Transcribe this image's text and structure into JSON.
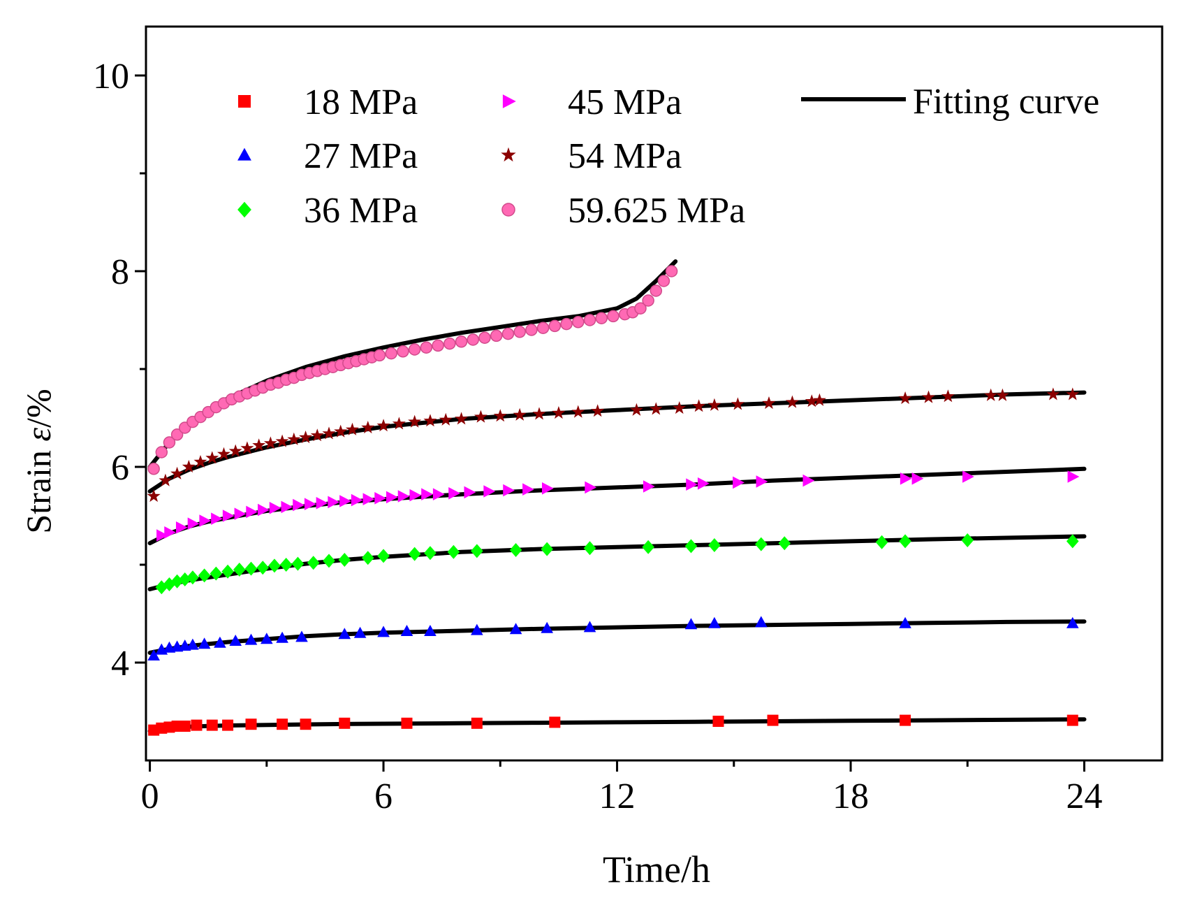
{
  "chart_data": {
    "type": "scatter",
    "title": "",
    "xlabel": "Time/h",
    "ylabel_prefix": "Strain ",
    "ylabel_symbol": "ε",
    "ylabel_suffix": "/%",
    "xlim": [
      -0.1,
      26
    ],
    "ylim": [
      3.0,
      10.5
    ],
    "xticks": [
      0,
      6,
      12,
      18,
      24
    ],
    "xtick_labels": [
      "0",
      "6",
      "12",
      "18",
      "24"
    ],
    "xminor": [
      3,
      9,
      15,
      21
    ],
    "yticks": [
      4,
      6,
      8,
      10
    ],
    "ytick_labels": [
      "4",
      "6",
      "8",
      "10"
    ],
    "yminor": [
      5,
      7,
      9
    ],
    "legend_position": "top",
    "fit_label": "Fitting curve",
    "series": [
      {
        "name": "18 MPa",
        "marker": "square",
        "color": "#ff0000",
        "x": [
          0.1,
          0.3,
          0.5,
          0.7,
          0.9,
          1.2,
          1.6,
          2.0,
          2.6,
          3.4,
          4.0,
          5.0,
          6.6,
          8.4,
          10.4,
          14.6,
          16.0,
          19.4,
          23.7
        ],
        "y": [
          3.31,
          3.33,
          3.34,
          3.35,
          3.35,
          3.36,
          3.36,
          3.36,
          3.37,
          3.37,
          3.37,
          3.38,
          3.38,
          3.38,
          3.39,
          3.4,
          3.41,
          3.41,
          3.41
        ],
        "fit_x": [
          0,
          0.3,
          0.6,
          1,
          1.5,
          2,
          3,
          4,
          5,
          6,
          8,
          10,
          12,
          14,
          16,
          18,
          20,
          22,
          24
        ],
        "fit_y": [
          3.3,
          3.325,
          3.335,
          3.345,
          3.352,
          3.357,
          3.363,
          3.368,
          3.372,
          3.375,
          3.38,
          3.385,
          3.39,
          3.395,
          3.4,
          3.405,
          3.41,
          3.415,
          3.42
        ]
      },
      {
        "name": "27 MPa",
        "marker": "triangle",
        "color": "#0000ff",
        "x": [
          0.1,
          0.3,
          0.5,
          0.7,
          0.9,
          1.1,
          1.4,
          1.8,
          2.2,
          2.6,
          3.0,
          3.4,
          3.9,
          5.0,
          5.4,
          6.0,
          6.6,
          7.2,
          8.4,
          9.4,
          10.2,
          11.3,
          13.9,
          14.5,
          15.7,
          19.4,
          23.7
        ],
        "y": [
          4.07,
          4.13,
          4.15,
          4.16,
          4.17,
          4.18,
          4.19,
          4.2,
          4.22,
          4.23,
          4.24,
          4.25,
          4.26,
          4.29,
          4.3,
          4.31,
          4.32,
          4.32,
          4.33,
          4.34,
          4.35,
          4.36,
          4.39,
          4.4,
          4.41,
          4.4,
          4.4
        ],
        "fit_x": [
          0,
          0.5,
          1,
          1.5,
          2,
          3,
          4,
          5,
          6,
          8,
          10,
          12,
          14,
          16,
          18,
          20,
          22,
          24
        ],
        "fit_y": [
          4.1,
          4.14,
          4.17,
          4.19,
          4.21,
          4.24,
          4.27,
          4.29,
          4.305,
          4.325,
          4.345,
          4.36,
          4.375,
          4.385,
          4.395,
          4.405,
          4.415,
          4.42
        ]
      },
      {
        "name": "36 MPa",
        "marker": "diamond",
        "color": "#00ff00",
        "x": [
          0.3,
          0.5,
          0.7,
          0.9,
          1.1,
          1.4,
          1.7,
          2.0,
          2.3,
          2.6,
          2.9,
          3.2,
          3.5,
          3.8,
          4.2,
          4.6,
          5.0,
          5.6,
          6.0,
          6.8,
          7.2,
          7.8,
          8.4,
          9.4,
          10.2,
          11.3,
          12.8,
          13.9,
          14.5,
          15.7,
          16.3,
          18.8,
          19.4,
          21.0,
          23.7
        ],
        "y": [
          4.77,
          4.8,
          4.83,
          4.85,
          4.87,
          4.89,
          4.91,
          4.93,
          4.95,
          4.96,
          4.97,
          4.99,
          5.0,
          5.01,
          5.02,
          5.04,
          5.05,
          5.07,
          5.09,
          5.11,
          5.12,
          5.13,
          5.14,
          5.15,
          5.16,
          5.17,
          5.18,
          5.19,
          5.2,
          5.21,
          5.22,
          5.23,
          5.24,
          5.25,
          5.24
        ],
        "fit_x": [
          0,
          0.5,
          1,
          1.5,
          2,
          3,
          4,
          5,
          6,
          8,
          10,
          12,
          14,
          16,
          18,
          20,
          22,
          24
        ],
        "fit_y": [
          4.75,
          4.8,
          4.84,
          4.87,
          4.9,
          4.96,
          5.01,
          5.05,
          5.08,
          5.13,
          5.16,
          5.18,
          5.2,
          5.22,
          5.24,
          5.26,
          5.275,
          5.29
        ]
      },
      {
        "name": "45 MPa",
        "marker": "arrow",
        "color": "#ff00ff",
        "x": [
          0.3,
          0.5,
          0.8,
          1.1,
          1.4,
          1.7,
          2.0,
          2.3,
          2.6,
          2.9,
          3.2,
          3.5,
          3.8,
          4.1,
          4.4,
          4.7,
          5.0,
          5.3,
          5.6,
          5.9,
          6.2,
          6.5,
          6.8,
          7.1,
          7.4,
          7.8,
          8.2,
          8.7,
          9.2,
          9.7,
          10.2,
          11.3,
          12.8,
          13.9,
          14.2,
          15.1,
          15.7,
          16.9,
          19.4,
          19.7,
          21.0,
          23.7
        ],
        "y": [
          5.3,
          5.33,
          5.38,
          5.42,
          5.45,
          5.47,
          5.5,
          5.52,
          5.54,
          5.56,
          5.58,
          5.59,
          5.61,
          5.62,
          5.63,
          5.64,
          5.65,
          5.66,
          5.67,
          5.68,
          5.69,
          5.7,
          5.71,
          5.72,
          5.72,
          5.73,
          5.74,
          5.75,
          5.76,
          5.77,
          5.78,
          5.79,
          5.8,
          5.82,
          5.83,
          5.84,
          5.85,
          5.86,
          5.88,
          5.88,
          5.9,
          5.9
        ],
        "fit_x": [
          0,
          0.5,
          1,
          1.5,
          2,
          3,
          4,
          5,
          6,
          8,
          10,
          12,
          14,
          16,
          18,
          20,
          22,
          24
        ],
        "fit_y": [
          5.22,
          5.32,
          5.39,
          5.44,
          5.48,
          5.55,
          5.6,
          5.64,
          5.67,
          5.72,
          5.76,
          5.79,
          5.82,
          5.86,
          5.89,
          5.92,
          5.95,
          5.98
        ]
      },
      {
        "name": "54 MPa",
        "marker": "star",
        "color": "#8b0000",
        "x": [
          0.1,
          0.4,
          0.7,
          1.0,
          1.3,
          1.6,
          1.9,
          2.2,
          2.5,
          2.8,
          3.1,
          3.4,
          3.7,
          4.0,
          4.3,
          4.6,
          4.9,
          5.2,
          5.6,
          6.0,
          6.4,
          6.8,
          7.2,
          7.6,
          8.0,
          8.5,
          9.0,
          9.5,
          10.0,
          10.5,
          11.0,
          11.5,
          12.5,
          13.0,
          13.6,
          14.1,
          14.5,
          15.1,
          15.9,
          16.5,
          17.0,
          17.2,
          19.4,
          20.0,
          20.5,
          21.6,
          21.9,
          23.2,
          23.7
        ],
        "y": [
          5.7,
          5.86,
          5.93,
          6.0,
          6.05,
          6.09,
          6.13,
          6.16,
          6.19,
          6.22,
          6.24,
          6.26,
          6.28,
          6.3,
          6.32,
          6.34,
          6.36,
          6.38,
          6.4,
          6.42,
          6.44,
          6.46,
          6.47,
          6.48,
          6.49,
          6.51,
          6.52,
          6.53,
          6.54,
          6.55,
          6.56,
          6.57,
          6.58,
          6.59,
          6.6,
          6.62,
          6.63,
          6.64,
          6.65,
          6.66,
          6.67,
          6.68,
          6.7,
          6.71,
          6.72,
          6.73,
          6.73,
          6.74,
          6.74
        ],
        "fit_x": [
          0,
          0.5,
          1,
          1.5,
          2,
          3,
          4,
          5,
          6,
          8,
          10,
          12,
          14,
          16,
          18,
          20,
          22,
          24
        ],
        "fit_y": [
          5.75,
          5.88,
          5.97,
          6.04,
          6.1,
          6.2,
          6.28,
          6.35,
          6.41,
          6.49,
          6.54,
          6.58,
          6.62,
          6.65,
          6.68,
          6.71,
          6.74,
          6.76
        ]
      },
      {
        "name": "59.625 MPa",
        "marker": "circle",
        "color": "#ff69b4",
        "x": [
          0.1,
          0.3,
          0.5,
          0.7,
          0.9,
          1.1,
          1.3,
          1.5,
          1.7,
          1.9,
          2.1,
          2.3,
          2.5,
          2.7,
          2.9,
          3.1,
          3.3,
          3.5,
          3.7,
          3.9,
          4.1,
          4.3,
          4.5,
          4.7,
          4.9,
          5.1,
          5.3,
          5.5,
          5.7,
          5.9,
          6.2,
          6.5,
          6.8,
          7.1,
          7.4,
          7.7,
          8.0,
          8.3,
          8.6,
          8.9,
          9.2,
          9.5,
          9.8,
          10.1,
          10.4,
          10.7,
          11.0,
          11.3,
          11.6,
          11.9,
          12.2,
          12.4,
          12.6,
          12.8,
          13.0,
          13.2,
          13.4
        ],
        "y": [
          5.98,
          6.15,
          6.25,
          6.33,
          6.4,
          6.46,
          6.51,
          6.56,
          6.61,
          6.65,
          6.69,
          6.72,
          6.75,
          6.78,
          6.81,
          6.84,
          6.86,
          6.89,
          6.91,
          6.94,
          6.96,
          6.98,
          7.0,
          7.02,
          7.04,
          7.06,
          7.08,
          7.1,
          7.12,
          7.14,
          7.16,
          7.18,
          7.2,
          7.22,
          7.24,
          7.26,
          7.28,
          7.3,
          7.32,
          7.34,
          7.36,
          7.38,
          7.4,
          7.42,
          7.44,
          7.46,
          7.48,
          7.5,
          7.52,
          7.54,
          7.56,
          7.58,
          7.62,
          7.7,
          7.8,
          7.9,
          8.0
        ],
        "fit_x": [
          0,
          0.5,
          1,
          1.5,
          2,
          3,
          4,
          5,
          6,
          7,
          8,
          9,
          10,
          11,
          12,
          12.5,
          13,
          13.5
        ],
        "fit_y": [
          6.0,
          6.25,
          6.45,
          6.58,
          6.7,
          6.88,
          7.02,
          7.13,
          7.22,
          7.3,
          7.37,
          7.43,
          7.49,
          7.54,
          7.62,
          7.72,
          7.9,
          8.1
        ]
      }
    ]
  }
}
